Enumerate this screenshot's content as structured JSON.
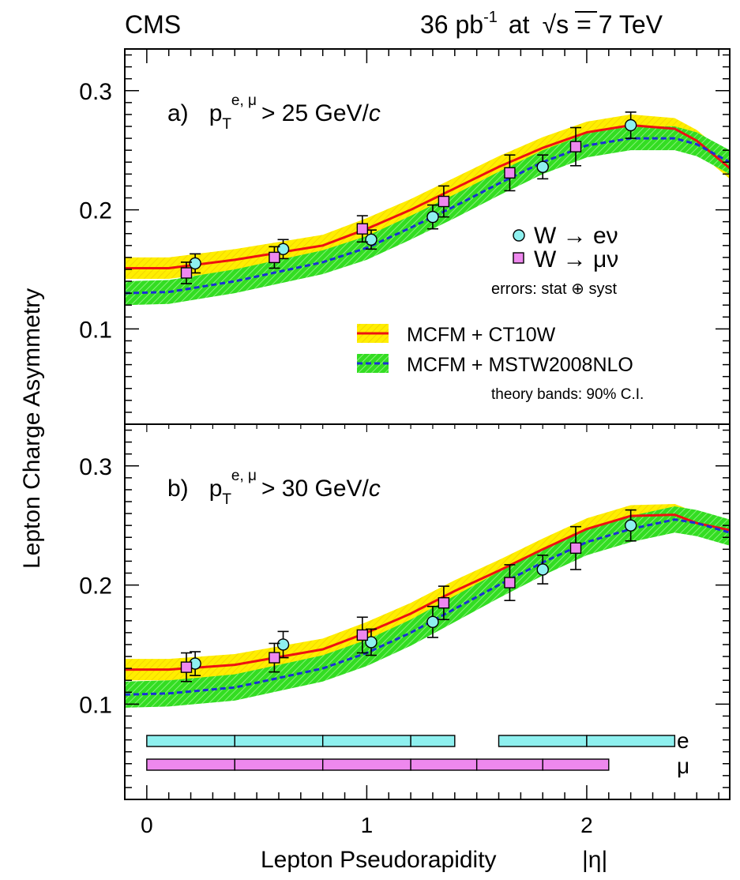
{
  "header": {
    "experiment": "CMS",
    "lumi_value": "36 pb",
    "lumi_exp": "-1",
    "at": "at",
    "sqrt_symbol": "√s",
    "energy": "= 7 TeV"
  },
  "axes": {
    "xlabel_main": "Lepton Pseudorapidity",
    "xlabel_var": "|η|",
    "ylabel": "Lepton Charge Asymmetry",
    "xticks": [
      "0",
      "1",
      "2"
    ],
    "yticks": [
      "0.1",
      "0.2",
      "0.3"
    ]
  },
  "legend": {
    "electron": "W → eν",
    "muon": "W → μν",
    "errors_note": "errors: stat ⊕ syst",
    "ct10": "MCFM + CT10W",
    "mstw": "MCFM + MSTW2008NLO",
    "theory_note": "theory bands: 90% C.I."
  },
  "colors": {
    "ct10_line": "#ee1111",
    "ct10_band": "#ffee00",
    "mstw_line": "#1a2fd6",
    "mstw_band": "#33dd22",
    "electron_marker": "#8ef0ef",
    "muon_marker": "#ee88ee",
    "bin_e": "#8ef0ef",
    "bin_mu": "#ee88ee"
  },
  "chart_data": [
    {
      "type": "line",
      "panel": "a",
      "label_prefix": "a)",
      "cut_p": "p",
      "cut_sub": "T",
      "cut_sup": "e, μ",
      "cut_rest": "> 25 GeV/",
      "cut_c": "c",
      "xlim": [
        -0.1,
        2.65
      ],
      "ylim": [
        0.02,
        0.335
      ],
      "series": [
        {
          "name": "W → eν",
          "x": [
            0.22,
            0.62,
            1.02,
            1.3,
            1.8,
            2.2
          ],
          "y": [
            0.155,
            0.167,
            0.175,
            0.194,
            0.236,
            0.271
          ],
          "err": [
            0.008,
            0.008,
            0.008,
            0.01,
            0.01,
            0.011
          ]
        },
        {
          "name": "W → μν",
          "x": [
            0.18,
            0.58,
            0.98,
            1.35,
            1.65,
            1.95
          ],
          "y": [
            0.147,
            0.16,
            0.184,
            0.207,
            0.231,
            0.253
          ],
          "err": [
            0.009,
            0.009,
            0.011,
            0.013,
            0.015,
            0.016
          ]
        }
      ],
      "theory": [
        {
          "name": "MCFM + CT10W",
          "x": [
            -0.1,
            0.1,
            0.4,
            0.8,
            1.0,
            1.2,
            1.4,
            1.6,
            1.8,
            2.0,
            2.2,
            2.4,
            2.5,
            2.65
          ],
          "y": [
            0.151,
            0.151,
            0.158,
            0.17,
            0.184,
            0.2,
            0.218,
            0.236,
            0.252,
            0.265,
            0.271,
            0.268,
            0.258,
            0.235
          ],
          "band": 0.009
        },
        {
          "name": "MCFM + MSTW2008NLO",
          "x": [
            -0.1,
            0.1,
            0.4,
            0.8,
            1.0,
            1.2,
            1.4,
            1.6,
            1.8,
            2.0,
            2.2,
            2.4,
            2.5,
            2.65
          ],
          "y": [
            0.13,
            0.131,
            0.14,
            0.156,
            0.168,
            0.185,
            0.203,
            0.222,
            0.24,
            0.254,
            0.26,
            0.26,
            0.255,
            0.24
          ],
          "band": 0.01
        }
      ]
    },
    {
      "type": "line",
      "panel": "b",
      "label_prefix": "b)",
      "cut_p": "p",
      "cut_sub": "T",
      "cut_sup": "e, μ",
      "cut_rest": "> 30 GeV/",
      "cut_c": "c",
      "xlim": [
        -0.1,
        2.65
      ],
      "ylim": [
        0.02,
        0.335
      ],
      "series": [
        {
          "name": "W → eν",
          "x": [
            0.22,
            0.62,
            1.02,
            1.3,
            1.8,
            2.2
          ],
          "y": [
            0.134,
            0.15,
            0.152,
            0.169,
            0.213,
            0.25
          ],
          "err": [
            0.01,
            0.011,
            0.011,
            0.013,
            0.012,
            0.013
          ]
        },
        {
          "name": "W → μν",
          "x": [
            0.18,
            0.58,
            0.98,
            1.35,
            1.65,
            1.95
          ],
          "y": [
            0.131,
            0.139,
            0.158,
            0.185,
            0.202,
            0.231
          ],
          "err": [
            0.012,
            0.012,
            0.015,
            0.014,
            0.015,
            0.018
          ]
        }
      ],
      "theory": [
        {
          "name": "MCFM + CT10W",
          "x": [
            -0.1,
            0.1,
            0.4,
            0.8,
            1.0,
            1.2,
            1.4,
            1.6,
            1.8,
            2.0,
            2.2,
            2.4,
            2.5,
            2.65
          ],
          "y": [
            0.129,
            0.129,
            0.133,
            0.146,
            0.16,
            0.176,
            0.195,
            0.212,
            0.23,
            0.247,
            0.258,
            0.259,
            0.252,
            0.246
          ],
          "band": 0.009
        },
        {
          "name": "MCFM + MSTW2008NLO",
          "x": [
            -0.1,
            0.1,
            0.4,
            0.8,
            1.0,
            1.2,
            1.4,
            1.6,
            1.8,
            2.0,
            2.2,
            2.4,
            2.5,
            2.65
          ],
          "y": [
            0.108,
            0.109,
            0.114,
            0.13,
            0.143,
            0.16,
            0.18,
            0.2,
            0.219,
            0.236,
            0.247,
            0.255,
            0.252,
            0.244
          ],
          "band": 0.011
        }
      ],
      "bins": {
        "e_label": "e",
        "mu_label": "μ",
        "e_segments": [
          [
            0.0,
            0.4
          ],
          [
            0.4,
            0.8
          ],
          [
            0.8,
            1.2
          ],
          [
            1.2,
            1.4
          ],
          [
            1.6,
            2.0
          ],
          [
            2.0,
            2.4
          ]
        ],
        "mu_segments": [
          [
            0.0,
            0.4
          ],
          [
            0.4,
            0.8
          ],
          [
            0.8,
            1.2
          ],
          [
            1.2,
            1.5
          ],
          [
            1.5,
            1.8
          ],
          [
            1.8,
            2.1
          ]
        ]
      }
    }
  ]
}
